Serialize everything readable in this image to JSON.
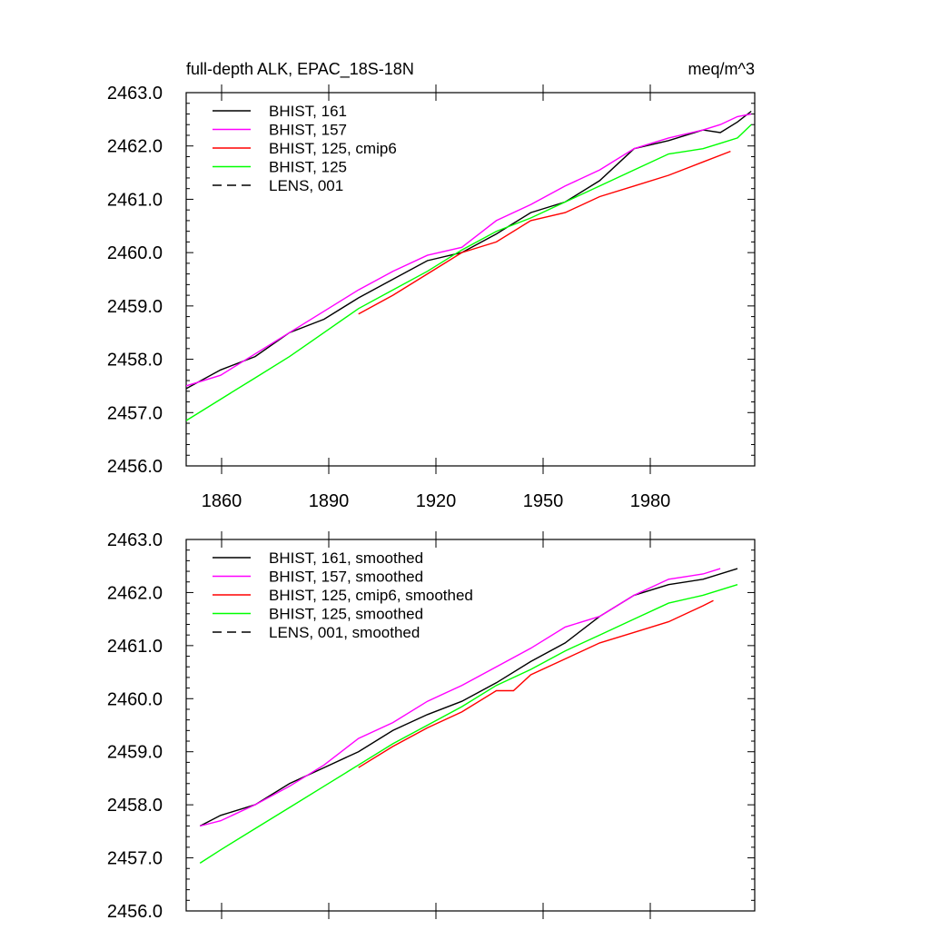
{
  "chart_data": [
    {
      "type": "line",
      "title": "full-depth ALK, EPAC_18S-18N",
      "units": "meq/m^3",
      "xlim": [
        1850,
        2015
      ],
      "ylim": [
        2456.0,
        2463.0
      ],
      "xticks": [
        1860,
        1890,
        1920,
        1950,
        1980
      ],
      "yticks": [
        "2456.0",
        "2457.0",
        "2458.0",
        "2459.0",
        "2460.0",
        "2461.0",
        "2462.0",
        "2463.0"
      ],
      "legend_position": "top-left",
      "series": [
        {
          "name": "BHIST, 161",
          "color": "#000000",
          "dash": "solid",
          "x": [
            1850,
            1860,
            1870,
            1880,
            1890,
            1900,
            1910,
            1920,
            1930,
            1940,
            1950,
            1960,
            1970,
            1980,
            1990,
            2000,
            2005,
            2010,
            2014
          ],
          "y": [
            2457.45,
            2457.8,
            2458.05,
            2458.5,
            2458.75,
            2459.15,
            2459.5,
            2459.85,
            2460.0,
            2460.35,
            2460.75,
            2460.95,
            2461.35,
            2461.95,
            2462.1,
            2462.3,
            2462.25,
            2462.45,
            2462.65
          ]
        },
        {
          "name": "BHIST, 157",
          "color": "#ff00ff",
          "dash": "solid",
          "x": [
            1850,
            1860,
            1870,
            1880,
            1890,
            1900,
            1910,
            1920,
            1930,
            1940,
            1950,
            1960,
            1970,
            1980,
            1990,
            2000,
            2005,
            2010,
            2014
          ],
          "y": [
            2457.5,
            2457.7,
            2458.1,
            2458.5,
            2458.9,
            2459.3,
            2459.65,
            2459.95,
            2460.1,
            2460.6,
            2460.9,
            2461.25,
            2461.55,
            2461.95,
            2462.15,
            2462.3,
            2462.4,
            2462.55,
            2462.6
          ]
        },
        {
          "name": "BHIST, 125, cmip6",
          "color": "#ff0000",
          "dash": "solid",
          "x": [
            1900,
            1910,
            1920,
            1930,
            1940,
            1950,
            1960,
            1970,
            1980,
            1990,
            2000,
            2008
          ],
          "y": [
            2458.85,
            2459.2,
            2459.6,
            2460.0,
            2460.2,
            2460.6,
            2460.75,
            2461.05,
            2461.25,
            2461.45,
            2461.7,
            2461.9
          ]
        },
        {
          "name": "BHIST, 125",
          "color": "#00ff00",
          "dash": "solid",
          "x": [
            1850,
            1860,
            1870,
            1880,
            1890,
            1900,
            1910,
            1920,
            1930,
            1940,
            1950,
            1960,
            1970,
            1980,
            1990,
            2000,
            2005,
            2010,
            2014
          ],
          "y": [
            2456.85,
            2457.25,
            2457.65,
            2458.05,
            2458.5,
            2458.95,
            2459.3,
            2459.65,
            2460.05,
            2460.4,
            2460.65,
            2460.95,
            2461.25,
            2461.55,
            2461.85,
            2461.95,
            2462.05,
            2462.15,
            2462.4
          ]
        },
        {
          "name": "LENS, 001",
          "color": "#000000",
          "dash": "dashed",
          "x": [],
          "y": []
        }
      ]
    },
    {
      "type": "line",
      "xlim": [
        1850,
        2015
      ],
      "ylim": [
        2456.0,
        2463.0
      ],
      "yticks": [
        "2456.0",
        "2457.0",
        "2458.0",
        "2459.0",
        "2460.0",
        "2461.0",
        "2462.0",
        "2463.0"
      ],
      "legend_position": "top-left",
      "series": [
        {
          "name": "BHIST, 161, smoothed",
          "color": "#000000",
          "dash": "solid",
          "x": [
            1854,
            1860,
            1870,
            1880,
            1890,
            1900,
            1910,
            1920,
            1930,
            1940,
            1950,
            1960,
            1970,
            1980,
            1990,
            2000,
            2010
          ],
          "y": [
            2457.6,
            2457.8,
            2458.0,
            2458.4,
            2458.7,
            2459.0,
            2459.4,
            2459.7,
            2459.95,
            2460.3,
            2460.7,
            2461.05,
            2461.55,
            2461.95,
            2462.15,
            2462.25,
            2462.45
          ]
        },
        {
          "name": "BHIST, 157, smoothed",
          "color": "#ff00ff",
          "dash": "solid",
          "x": [
            1854,
            1860,
            1870,
            1880,
            1890,
            1900,
            1910,
            1920,
            1930,
            1940,
            1950,
            1960,
            1970,
            1980,
            1990,
            2000,
            2005
          ],
          "y": [
            2457.6,
            2457.7,
            2458.0,
            2458.35,
            2458.75,
            2459.25,
            2459.55,
            2459.95,
            2460.25,
            2460.6,
            2460.95,
            2461.35,
            2461.55,
            2461.95,
            2462.25,
            2462.35,
            2462.45
          ]
        },
        {
          "name": "BHIST, 125, cmip6, smoothed",
          "color": "#ff0000",
          "dash": "solid",
          "x": [
            1900,
            1910,
            1920,
            1930,
            1940,
            1945,
            1950,
            1960,
            1970,
            1980,
            1990,
            2000,
            2003
          ],
          "y": [
            2458.7,
            2459.1,
            2459.45,
            2459.75,
            2460.15,
            2460.15,
            2460.45,
            2460.75,
            2461.05,
            2461.25,
            2461.45,
            2461.75,
            2461.85
          ]
        },
        {
          "name": "BHIST, 125, smoothed",
          "color": "#00ff00",
          "dash": "solid",
          "x": [
            1854,
            1860,
            1870,
            1880,
            1890,
            1900,
            1910,
            1920,
            1930,
            1940,
            1950,
            1960,
            1970,
            1980,
            1990,
            2000,
            2010
          ],
          "y": [
            2456.9,
            2457.15,
            2457.55,
            2457.95,
            2458.35,
            2458.75,
            2459.15,
            2459.5,
            2459.85,
            2460.25,
            2460.55,
            2460.9,
            2461.2,
            2461.5,
            2461.8,
            2461.95,
            2462.15
          ]
        },
        {
          "name": "LENS, 001, smoothed",
          "color": "#000000",
          "dash": "dashed",
          "x": [],
          "y": []
        }
      ]
    }
  ]
}
